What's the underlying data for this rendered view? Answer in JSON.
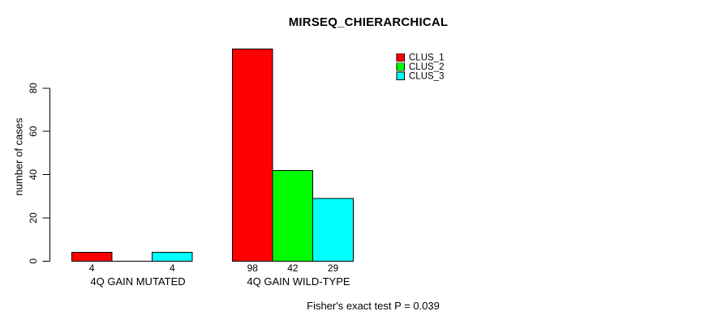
{
  "figure": {
    "title": "MIRSEQ_CHIERARCHICAL"
  },
  "chart_data": {
    "type": "bar",
    "title": "MIRSEQ_CHIERARCHICAL",
    "categories": [
      "4Q GAIN MUTATED",
      "4Q GAIN WILD-TYPE"
    ],
    "series": [
      {
        "name": "CLUS_1",
        "color": "#ff0000",
        "values": [
          4,
          98
        ]
      },
      {
        "name": "CLUS_2",
        "color": "#00ff00",
        "values": [
          0,
          42
        ]
      },
      {
        "name": "CLUS_3",
        "color": "#00ffff",
        "values": [
          4,
          29
        ]
      }
    ],
    "bar_value_labels": [
      [
        "4",
        "",
        "4"
      ],
      [
        "98",
        "42",
        "29"
      ]
    ],
    "ylabel": "number of cases",
    "xlabel": "",
    "yticks": [
      0,
      20,
      40,
      60,
      80
    ],
    "ylim": [
      0,
      98
    ],
    "grid": false,
    "bar_border_color": "#000000",
    "legend": {
      "position": "top-right",
      "entries": [
        "CLUS_1",
        "CLUS_2",
        "CLUS_3"
      ]
    },
    "annotation": "Fisher's exact test P = 0.039"
  }
}
